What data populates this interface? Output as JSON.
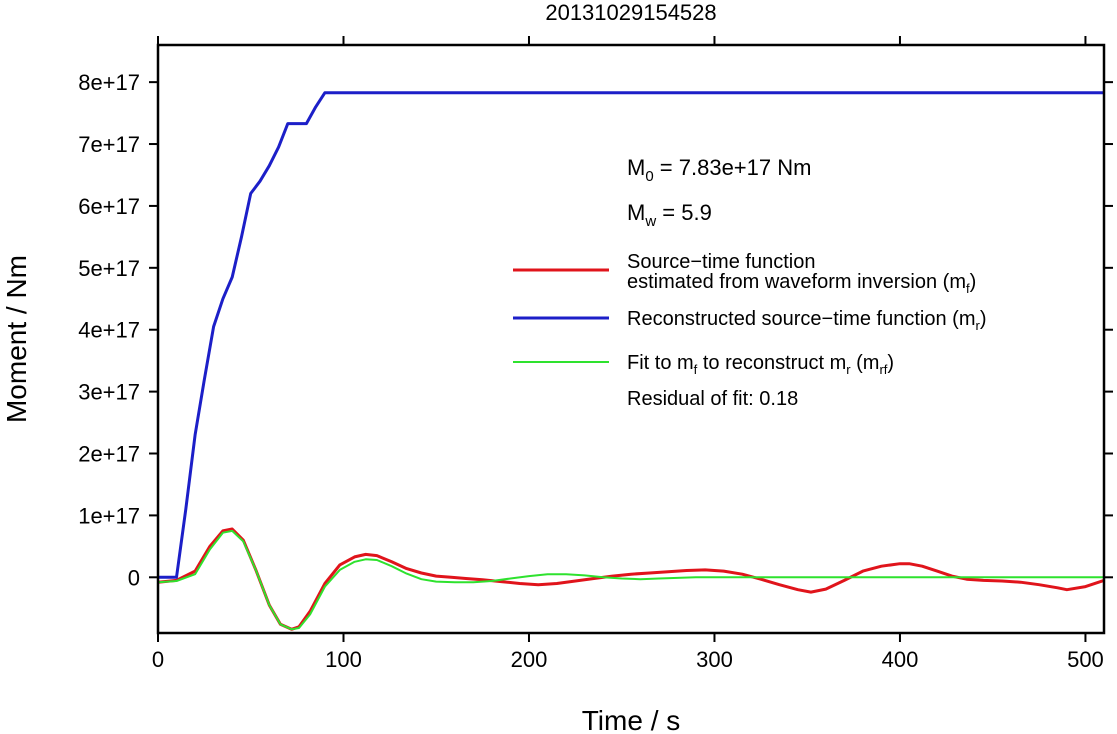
{
  "chart_data": {
    "type": "line",
    "title": "20131029154528",
    "xlabel": "Time / s",
    "ylabel": "Moment / Nm",
    "xlim": [
      0,
      510
    ],
    "ylim": [
      -9e+16,
      8.6e+17
    ],
    "grid": false,
    "legend_position": "right",
    "x_ticks": [
      0,
      100,
      200,
      300,
      400,
      500
    ],
    "x_tick_labels": [
      "0",
      "100",
      "200",
      "300",
      "400",
      "500"
    ],
    "y_ticks": [
      0,
      1e+17,
      2e+17,
      3e+17,
      4e+17,
      5e+17,
      6e+17,
      7e+17,
      8e+17
    ],
    "y_tick_labels": [
      "0",
      "1e+17",
      "2e+17",
      "3e+17",
      "4e+17",
      "5e+17",
      "6e+17",
      "7e+17",
      "8e+17"
    ],
    "annotations": {
      "m0": {
        "base": "M",
        "sub": "0",
        "rest": " = 7.83e+17 Nm"
      },
      "mw": {
        "base": "M",
        "sub": "w",
        "rest": " = 5.9"
      },
      "residual": "Residual of fit: 0.18"
    },
    "legend": [
      {
        "line1": "Source−time function",
        "line2_pre": "estimated from waveform inversion (m",
        "line2_sub": "f",
        "line2_post": ")",
        "color": "#e0141b"
      },
      {
        "pre": "Reconstructed source−time function (m",
        "sub": "r",
        "post": ")",
        "color": "#1c1fc8"
      },
      {
        "pre": "Fit to m",
        "sub1": "f",
        "mid": " to reconstruct m",
        "sub2": "r",
        "mid2": " (m",
        "sub3": "rf",
        "post": ")",
        "color": "#2ee22e"
      }
    ],
    "series": [
      {
        "key": "red",
        "color": "#e0141b",
        "width": 3,
        "x": [
          0,
          10,
          20,
          28,
          35,
          40,
          46,
          53,
          60,
          66,
          72,
          76,
          82,
          90,
          98,
          106,
          112,
          118,
          126,
          134,
          142,
          150,
          158,
          166,
          175,
          185,
          195,
          205,
          215,
          225,
          235,
          245,
          255,
          265,
          275,
          285,
          295,
          305,
          315,
          325,
          335,
          345,
          352,
          360,
          370,
          380,
          390,
          400,
          405,
          412,
          420,
          428,
          436,
          445,
          455,
          465,
          475,
          485,
          490,
          500,
          510
        ],
        "y": [
          -8000000000000000.0,
          -5000000000000000.0,
          1e+16,
          5e+16,
          7.5e+16,
          7.8e+16,
          6e+16,
          1e+16,
          -4.5e+16,
          -7.6e+16,
          -8.4e+16,
          -8e+16,
          -5.5e+16,
          -1e+16,
          2e+16,
          3.3e+16,
          3.7e+16,
          3.5e+16,
          2.5e+16,
          1.4e+16,
          7000000000000000.0,
          2000000000000000.0,
          0.0,
          -2000000000000000.0,
          -4000000000000000.0,
          -7000000000000000.0,
          -1e+16,
          -1.2e+16,
          -1e+16,
          -6000000000000000.0,
          -2000000000000000.0,
          2000000000000000.0,
          5000000000000000.0,
          7000000000000000.0,
          9000000000000000.0,
          1.1e+16,
          1.2e+16,
          1e+16,
          5000000000000000.0,
          -3000000000000000.0,
          -1.2e+16,
          -2e+16,
          -2.4e+16,
          -1.9e+16,
          -5000000000000000.0,
          1e+16,
          1.8e+16,
          2.2e+16,
          2.2e+16,
          1.8e+16,
          1e+16,
          2000000000000000.0,
          -3000000000000000.0,
          -5000000000000000.0,
          -6000000000000000.0,
          -8000000000000000.0,
          -1.2e+16,
          -1.7e+16,
          -2e+16,
          -1.5e+16,
          -5000000000000000.0
        ]
      },
      {
        "key": "green",
        "color": "#2ee22e",
        "width": 2,
        "x": [
          0,
          10,
          20,
          28,
          35,
          40,
          46,
          53,
          60,
          66,
          72,
          76,
          82,
          90,
          98,
          106,
          112,
          118,
          126,
          134,
          142,
          150,
          160,
          170,
          180,
          190,
          200,
          210,
          220,
          230,
          240,
          250,
          260,
          270,
          280,
          290,
          300,
          320,
          340,
          360,
          380,
          400,
          420,
          440,
          460,
          480,
          500,
          510
        ],
        "y": [
          -8000000000000000.0,
          -6000000000000000.0,
          5000000000000000.0,
          4.5e+16,
          7.2e+16,
          7.5e+16,
          5.8e+16,
          1e+16,
          -4.5e+16,
          -7.6e+16,
          -8.4e+16,
          -8.2e+16,
          -6e+16,
          -1.5e+16,
          1.2e+16,
          2.5e+16,
          2.9e+16,
          2.8e+16,
          1.8e+16,
          6000000000000000.0,
          -3000000000000000.0,
          -7000000000000000.0,
          -8000000000000000.0,
          -8000000000000000.0,
          -6000000000000000.0,
          -2000000000000000.0,
          2000000000000000.0,
          5000000000000000.0,
          5000000000000000.0,
          3000000000000000.0,
          0.0,
          -2000000000000000.0,
          -3000000000000000.0,
          -2000000000000000.0,
          -1000000000000000.0,
          0.0,
          0.0,
          0.0,
          0.0,
          0.0,
          0.0,
          0.0,
          0.0,
          0.0,
          0.0,
          0.0,
          0.0,
          0.0
        ]
      },
      {
        "key": "blue",
        "color": "#1c1fc8",
        "width": 3,
        "x": [
          0,
          10,
          15,
          20,
          25,
          30,
          35,
          40,
          45,
          50,
          55,
          60,
          65,
          70,
          75,
          80,
          85,
          90,
          100,
          200,
          300,
          400,
          510
        ],
        "y": [
          0,
          0,
          1.1e+17,
          2.3e+17,
          3.2e+17,
          4.05e+17,
          4.5e+17,
          4.85e+17,
          5.5e+17,
          6.2e+17,
          6.4e+17,
          6.65e+17,
          6.95e+17,
          7.33e+17,
          7.33e+17,
          7.33e+17,
          7.6e+17,
          7.83e+17,
          7.83e+17,
          7.83e+17,
          7.83e+17,
          7.83e+17,
          7.83e+17
        ]
      }
    ]
  }
}
